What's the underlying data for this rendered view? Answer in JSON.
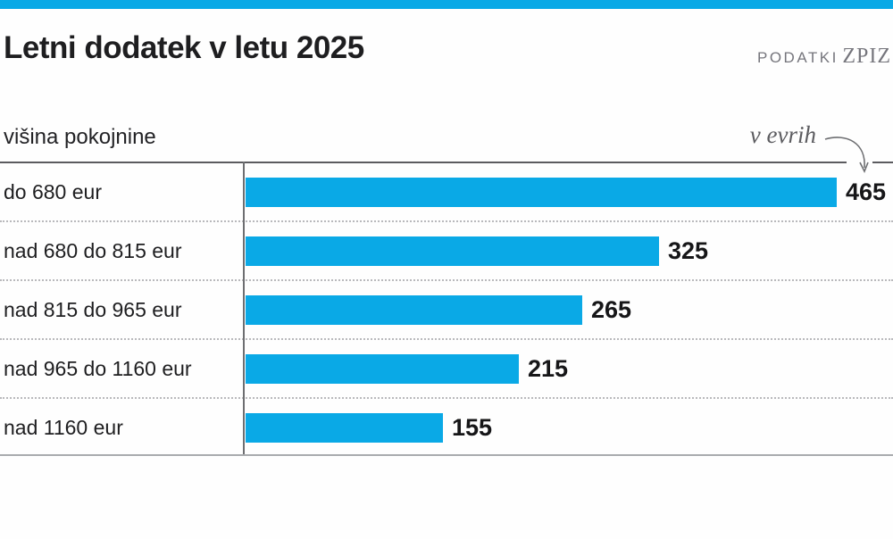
{
  "meta": {
    "accent_color": "#0aa9e6",
    "axis_line_color": "#6d6e71",
    "muted_text_color": "#75757c"
  },
  "header": {
    "title": "Letni dodatek v letu 2025",
    "source_label": "PODATKI",
    "source_name": "ZPIZ"
  },
  "chart_data": {
    "type": "bar",
    "orientation": "horizontal",
    "title": "Letni dodatek v letu 2025",
    "xlabel": "višina pokojnine",
    "unit_annotation": "v evrih",
    "categories": [
      "do 680 eur",
      "nad 680 do 815 eur",
      "nad 815 do 965 eur",
      "nad 965 do 1160 eur",
      "nad 1160 eur"
    ],
    "values": [
      465,
      325,
      265,
      215,
      155
    ],
    "value_range": [
      0,
      465
    ],
    "bar_color": "#0aa9e6",
    "legend": "none",
    "grid": "dotted-row-separators",
    "source": "PODATKI ZPIZ"
  }
}
